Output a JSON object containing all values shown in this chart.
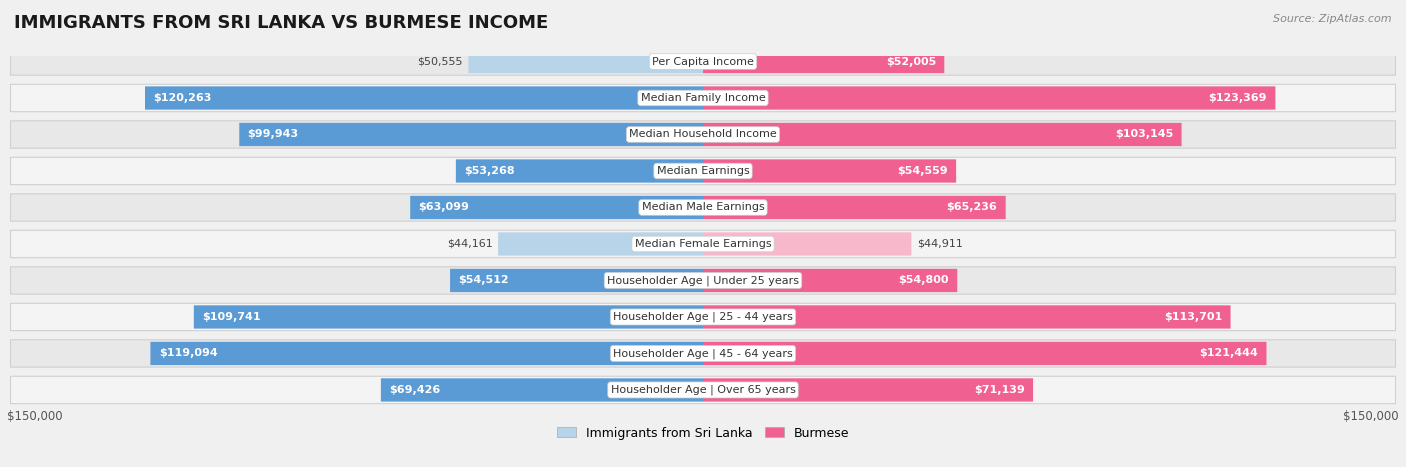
{
  "title": "IMMIGRANTS FROM SRI LANKA VS BURMESE INCOME",
  "source": "Source: ZipAtlas.com",
  "categories": [
    "Per Capita Income",
    "Median Family Income",
    "Median Household Income",
    "Median Earnings",
    "Median Male Earnings",
    "Median Female Earnings",
    "Householder Age | Under 25 years",
    "Householder Age | 25 - 44 years",
    "Householder Age | 45 - 64 years",
    "Householder Age | Over 65 years"
  ],
  "sri_lanka_values": [
    50555,
    120263,
    99943,
    53268,
    63099,
    44161,
    54512,
    109741,
    119094,
    69426
  ],
  "burmese_values": [
    52005,
    123369,
    103145,
    54559,
    65236,
    44911,
    54800,
    113701,
    121444,
    71139
  ],
  "sri_lanka_labels": [
    "$50,555",
    "$120,263",
    "$99,943",
    "$53,268",
    "$63,099",
    "$44,161",
    "$54,512",
    "$109,741",
    "$119,094",
    "$69,426"
  ],
  "burmese_labels": [
    "$52,005",
    "$123,369",
    "$103,145",
    "$54,559",
    "$65,236",
    "$44,911",
    "$54,800",
    "$113,701",
    "$121,444",
    "$71,139"
  ],
  "sri_lanka_color_light": "#b8d4e8",
  "sri_lanka_color_dark": "#5b9bd5",
  "burmese_color_light": "#f8b8cc",
  "burmese_color_dark": "#f06090",
  "max_value": 150000,
  "background_color": "#f0f0f0",
  "row_bg_even": "#e8e8e8",
  "row_bg_odd": "#f4f4f4",
  "legend_sri_lanka": "Immigrants from Sri Lanka",
  "legend_burmese": "Burmese",
  "title_fontsize": 13,
  "label_fontsize": 8,
  "category_fontsize": 8,
  "source_fontsize": 8,
  "inside_label_threshold": 52000
}
